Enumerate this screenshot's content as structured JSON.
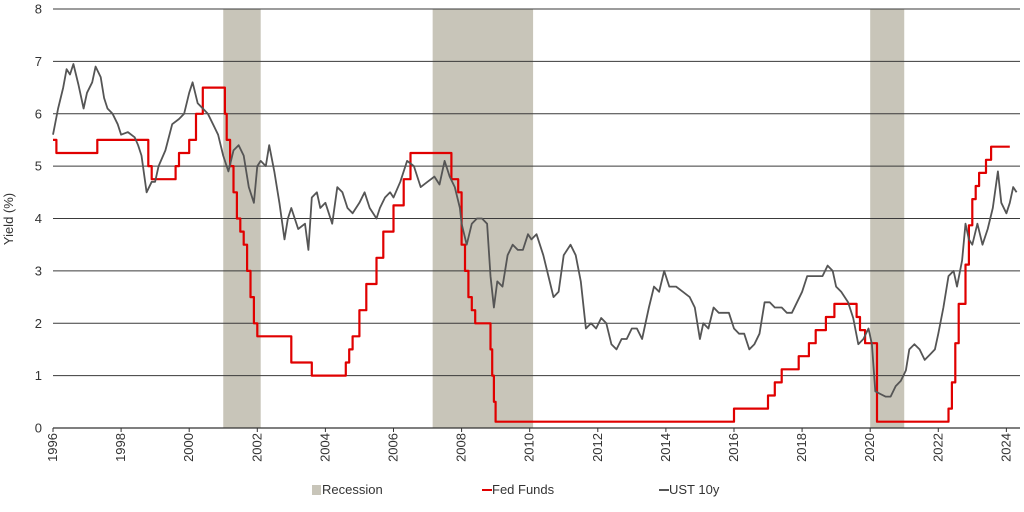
{
  "chart_data": {
    "type": "line",
    "title": "",
    "xlabel": "",
    "ylabel": "Yield (%)",
    "xlim": [
      1996,
      2024.4
    ],
    "ylim": [
      0,
      8
    ],
    "y_ticks": [
      0,
      1,
      2,
      3,
      4,
      5,
      6,
      7,
      8
    ],
    "x_ticks": [
      "1996",
      "1998",
      "2000",
      "2002",
      "2004",
      "2006",
      "2008",
      "2010",
      "2012",
      "2014",
      "2016",
      "2018",
      "2020",
      "2022",
      "2024"
    ],
    "grid": "horizontal",
    "legend_position": "bottom",
    "recession": {
      "name": "Recession",
      "color": "#c8c5b9",
      "periods": [
        [
          2001.0,
          2002.1
        ],
        [
          2007.15,
          2010.1
        ],
        [
          2020.0,
          2021.0
        ]
      ]
    },
    "series": [
      {
        "name": "Fed Funds",
        "color": "#e00000",
        "points": [
          [
            1996.0,
            5.5
          ],
          [
            1996.1,
            5.25
          ],
          [
            1997.2,
            5.25
          ],
          [
            1997.3,
            5.5
          ],
          [
            1998.7,
            5.5
          ],
          [
            1998.8,
            5.0
          ],
          [
            1998.9,
            4.75
          ],
          [
            1999.5,
            4.75
          ],
          [
            1999.6,
            5.0
          ],
          [
            1999.7,
            5.25
          ],
          [
            2000.0,
            5.5
          ],
          [
            2000.2,
            6.0
          ],
          [
            2000.4,
            6.5
          ],
          [
            2001.0,
            6.5
          ],
          [
            2001.05,
            6.0
          ],
          [
            2001.1,
            5.5
          ],
          [
            2001.2,
            5.0
          ],
          [
            2001.3,
            4.5
          ],
          [
            2001.4,
            4.0
          ],
          [
            2001.5,
            3.75
          ],
          [
            2001.6,
            3.5
          ],
          [
            2001.7,
            3.0
          ],
          [
            2001.8,
            2.5
          ],
          [
            2001.9,
            2.0
          ],
          [
            2002.0,
            1.75
          ],
          [
            2002.9,
            1.75
          ],
          [
            2003.0,
            1.25
          ],
          [
            2003.5,
            1.25
          ],
          [
            2003.6,
            1.0
          ],
          [
            2004.5,
            1.0
          ],
          [
            2004.6,
            1.25
          ],
          [
            2004.7,
            1.5
          ],
          [
            2004.8,
            1.75
          ],
          [
            2005.0,
            2.25
          ],
          [
            2005.2,
            2.75
          ],
          [
            2005.5,
            3.25
          ],
          [
            2005.7,
            3.75
          ],
          [
            2006.0,
            4.25
          ],
          [
            2006.3,
            4.75
          ],
          [
            2006.5,
            5.25
          ],
          [
            2007.6,
            5.25
          ],
          [
            2007.7,
            4.75
          ],
          [
            2007.9,
            4.5
          ],
          [
            2008.0,
            3.5
          ],
          [
            2008.1,
            3.0
          ],
          [
            2008.2,
            2.5
          ],
          [
            2008.3,
            2.25
          ],
          [
            2008.4,
            2.0
          ],
          [
            2008.8,
            2.0
          ],
          [
            2008.85,
            1.5
          ],
          [
            2008.9,
            1.0
          ],
          [
            2008.95,
            0.5
          ],
          [
            2009.0,
            0.12
          ],
          [
            2015.9,
            0.12
          ],
          [
            2016.0,
            0.37
          ],
          [
            2016.9,
            0.37
          ],
          [
            2017.0,
            0.62
          ],
          [
            2017.2,
            0.87
          ],
          [
            2017.4,
            1.12
          ],
          [
            2017.9,
            1.37
          ],
          [
            2018.2,
            1.62
          ],
          [
            2018.4,
            1.87
          ],
          [
            2018.7,
            2.12
          ],
          [
            2018.95,
            2.37
          ],
          [
            2019.5,
            2.37
          ],
          [
            2019.6,
            2.12
          ],
          [
            2019.7,
            1.87
          ],
          [
            2019.85,
            1.62
          ],
          [
            2020.15,
            1.62
          ],
          [
            2020.2,
            0.12
          ],
          [
            2022.2,
            0.12
          ],
          [
            2022.3,
            0.37
          ],
          [
            2022.4,
            0.87
          ],
          [
            2022.5,
            1.62
          ],
          [
            2022.6,
            2.37
          ],
          [
            2022.8,
            3.12
          ],
          [
            2022.9,
            3.87
          ],
          [
            2023.0,
            4.37
          ],
          [
            2023.1,
            4.62
          ],
          [
            2023.2,
            4.87
          ],
          [
            2023.4,
            5.12
          ],
          [
            2023.55,
            5.37
          ],
          [
            2024.1,
            5.37
          ]
        ]
      },
      {
        "name": "UST 10y",
        "color": "#555555",
        "points": [
          [
            1996.0,
            5.6
          ],
          [
            1996.15,
            6.1
          ],
          [
            1996.3,
            6.5
          ],
          [
            1996.4,
            6.85
          ],
          [
            1996.5,
            6.75
          ],
          [
            1996.6,
            6.95
          ],
          [
            1996.75,
            6.55
          ],
          [
            1996.9,
            6.1
          ],
          [
            1997.0,
            6.4
          ],
          [
            1997.15,
            6.6
          ],
          [
            1997.25,
            6.9
          ],
          [
            1997.4,
            6.7
          ],
          [
            1997.5,
            6.3
          ],
          [
            1997.6,
            6.1
          ],
          [
            1997.75,
            6.0
          ],
          [
            1997.9,
            5.8
          ],
          [
            1998.0,
            5.6
          ],
          [
            1998.2,
            5.65
          ],
          [
            1998.4,
            5.55
          ],
          [
            1998.5,
            5.4
          ],
          [
            1998.6,
            5.2
          ],
          [
            1998.75,
            4.5
          ],
          [
            1998.9,
            4.7
          ],
          [
            1999.0,
            4.7
          ],
          [
            1999.1,
            5.0
          ],
          [
            1999.3,
            5.3
          ],
          [
            1999.5,
            5.8
          ],
          [
            1999.7,
            5.9
          ],
          [
            1999.85,
            6.0
          ],
          [
            2000.0,
            6.4
          ],
          [
            2000.1,
            6.6
          ],
          [
            2000.25,
            6.2
          ],
          [
            2000.4,
            6.1
          ],
          [
            2000.55,
            6.0
          ],
          [
            2000.7,
            5.8
          ],
          [
            2000.85,
            5.6
          ],
          [
            2001.0,
            5.2
          ],
          [
            2001.15,
            4.9
          ],
          [
            2001.3,
            5.3
          ],
          [
            2001.45,
            5.4
          ],
          [
            2001.6,
            5.2
          ],
          [
            2001.75,
            4.6
          ],
          [
            2001.9,
            4.3
          ],
          [
            2002.0,
            5.0
          ],
          [
            2002.1,
            5.1
          ],
          [
            2002.25,
            5.0
          ],
          [
            2002.35,
            5.4
          ],
          [
            2002.5,
            4.9
          ],
          [
            2002.65,
            4.3
          ],
          [
            2002.8,
            3.6
          ],
          [
            2002.9,
            4.0
          ],
          [
            2003.0,
            4.2
          ],
          [
            2003.2,
            3.8
          ],
          [
            2003.4,
            3.9
          ],
          [
            2003.5,
            3.4
          ],
          [
            2003.6,
            4.4
          ],
          [
            2003.75,
            4.5
          ],
          [
            2003.85,
            4.2
          ],
          [
            2004.0,
            4.3
          ],
          [
            2004.2,
            3.9
          ],
          [
            2004.35,
            4.6
          ],
          [
            2004.5,
            4.5
          ],
          [
            2004.65,
            4.2
          ],
          [
            2004.8,
            4.1
          ],
          [
            2005.0,
            4.3
          ],
          [
            2005.15,
            4.5
          ],
          [
            2005.3,
            4.2
          ],
          [
            2005.5,
            4.0
          ],
          [
            2005.6,
            4.2
          ],
          [
            2005.75,
            4.4
          ],
          [
            2005.9,
            4.5
          ],
          [
            2006.0,
            4.4
          ],
          [
            2006.2,
            4.7
          ],
          [
            2006.4,
            5.1
          ],
          [
            2006.6,
            5.0
          ],
          [
            2006.8,
            4.6
          ],
          [
            2007.0,
            4.7
          ],
          [
            2007.2,
            4.8
          ],
          [
            2007.35,
            4.65
          ],
          [
            2007.5,
            5.1
          ],
          [
            2007.65,
            4.8
          ],
          [
            2007.8,
            4.6
          ],
          [
            2007.95,
            4.2
          ],
          [
            2008.0,
            3.9
          ],
          [
            2008.15,
            3.5
          ],
          [
            2008.3,
            3.9
          ],
          [
            2008.45,
            4.0
          ],
          [
            2008.6,
            4.0
          ],
          [
            2008.75,
            3.9
          ],
          [
            2008.85,
            2.9
          ],
          [
            2008.95,
            2.3
          ],
          [
            2009.05,
            2.8
          ],
          [
            2009.2,
            2.7
          ],
          [
            2009.35,
            3.3
          ],
          [
            2009.5,
            3.5
          ],
          [
            2009.65,
            3.4
          ],
          [
            2009.8,
            3.4
          ],
          [
            2009.95,
            3.7
          ],
          [
            2010.05,
            3.6
          ],
          [
            2010.2,
            3.7
          ],
          [
            2010.4,
            3.3
          ],
          [
            2010.55,
            2.9
          ],
          [
            2010.7,
            2.5
          ],
          [
            2010.85,
            2.6
          ],
          [
            2011.0,
            3.3
          ],
          [
            2011.2,
            3.5
          ],
          [
            2011.35,
            3.3
          ],
          [
            2011.5,
            2.8
          ],
          [
            2011.65,
            1.9
          ],
          [
            2011.8,
            2.0
          ],
          [
            2011.95,
            1.9
          ],
          [
            2012.1,
            2.1
          ],
          [
            2012.25,
            2.0
          ],
          [
            2012.4,
            1.6
          ],
          [
            2012.55,
            1.5
          ],
          [
            2012.7,
            1.7
          ],
          [
            2012.85,
            1.7
          ],
          [
            2013.0,
            1.9
          ],
          [
            2013.15,
            1.9
          ],
          [
            2013.3,
            1.7
          ],
          [
            2013.5,
            2.3
          ],
          [
            2013.65,
            2.7
          ],
          [
            2013.8,
            2.6
          ],
          [
            2013.95,
            3.0
          ],
          [
            2014.1,
            2.7
          ],
          [
            2014.3,
            2.7
          ],
          [
            2014.5,
            2.6
          ],
          [
            2014.7,
            2.5
          ],
          [
            2014.85,
            2.3
          ],
          [
            2015.0,
            1.7
          ],
          [
            2015.1,
            2.0
          ],
          [
            2015.25,
            1.9
          ],
          [
            2015.4,
            2.3
          ],
          [
            2015.55,
            2.2
          ],
          [
            2015.7,
            2.2
          ],
          [
            2015.85,
            2.2
          ],
          [
            2016.0,
            1.9
          ],
          [
            2016.15,
            1.8
          ],
          [
            2016.3,
            1.8
          ],
          [
            2016.45,
            1.5
          ],
          [
            2016.6,
            1.6
          ],
          [
            2016.75,
            1.8
          ],
          [
            2016.9,
            2.4
          ],
          [
            2017.05,
            2.4
          ],
          [
            2017.2,
            2.3
          ],
          [
            2017.4,
            2.3
          ],
          [
            2017.55,
            2.2
          ],
          [
            2017.7,
            2.2
          ],
          [
            2017.85,
            2.4
          ],
          [
            2018.0,
            2.6
          ],
          [
            2018.15,
            2.9
          ],
          [
            2018.3,
            2.9
          ],
          [
            2018.45,
            2.9
          ],
          [
            2018.6,
            2.9
          ],
          [
            2018.75,
            3.1
          ],
          [
            2018.9,
            3.0
          ],
          [
            2019.0,
            2.7
          ],
          [
            2019.15,
            2.6
          ],
          [
            2019.35,
            2.4
          ],
          [
            2019.5,
            2.1
          ],
          [
            2019.65,
            1.6
          ],
          [
            2019.8,
            1.7
          ],
          [
            2019.95,
            1.9
          ],
          [
            2020.05,
            1.6
          ],
          [
            2020.15,
            0.7
          ],
          [
            2020.3,
            0.65
          ],
          [
            2020.45,
            0.6
          ],
          [
            2020.6,
            0.6
          ],
          [
            2020.75,
            0.8
          ],
          [
            2020.9,
            0.9
          ],
          [
            2021.05,
            1.1
          ],
          [
            2021.15,
            1.5
          ],
          [
            2021.3,
            1.6
          ],
          [
            2021.45,
            1.5
          ],
          [
            2021.6,
            1.3
          ],
          [
            2021.75,
            1.4
          ],
          [
            2021.9,
            1.5
          ],
          [
            2022.0,
            1.8
          ],
          [
            2022.15,
            2.3
          ],
          [
            2022.3,
            2.9
          ],
          [
            2022.45,
            3.0
          ],
          [
            2022.55,
            2.7
          ],
          [
            2022.7,
            3.2
          ],
          [
            2022.8,
            3.9
          ],
          [
            2022.9,
            3.6
          ],
          [
            2023.0,
            3.5
          ],
          [
            2023.15,
            3.9
          ],
          [
            2023.3,
            3.5
          ],
          [
            2023.45,
            3.8
          ],
          [
            2023.6,
            4.2
          ],
          [
            2023.75,
            4.9
          ],
          [
            2023.85,
            4.3
          ],
          [
            2024.0,
            4.1
          ],
          [
            2024.1,
            4.3
          ],
          [
            2024.2,
            4.6
          ],
          [
            2024.3,
            4.5
          ]
        ]
      }
    ]
  }
}
